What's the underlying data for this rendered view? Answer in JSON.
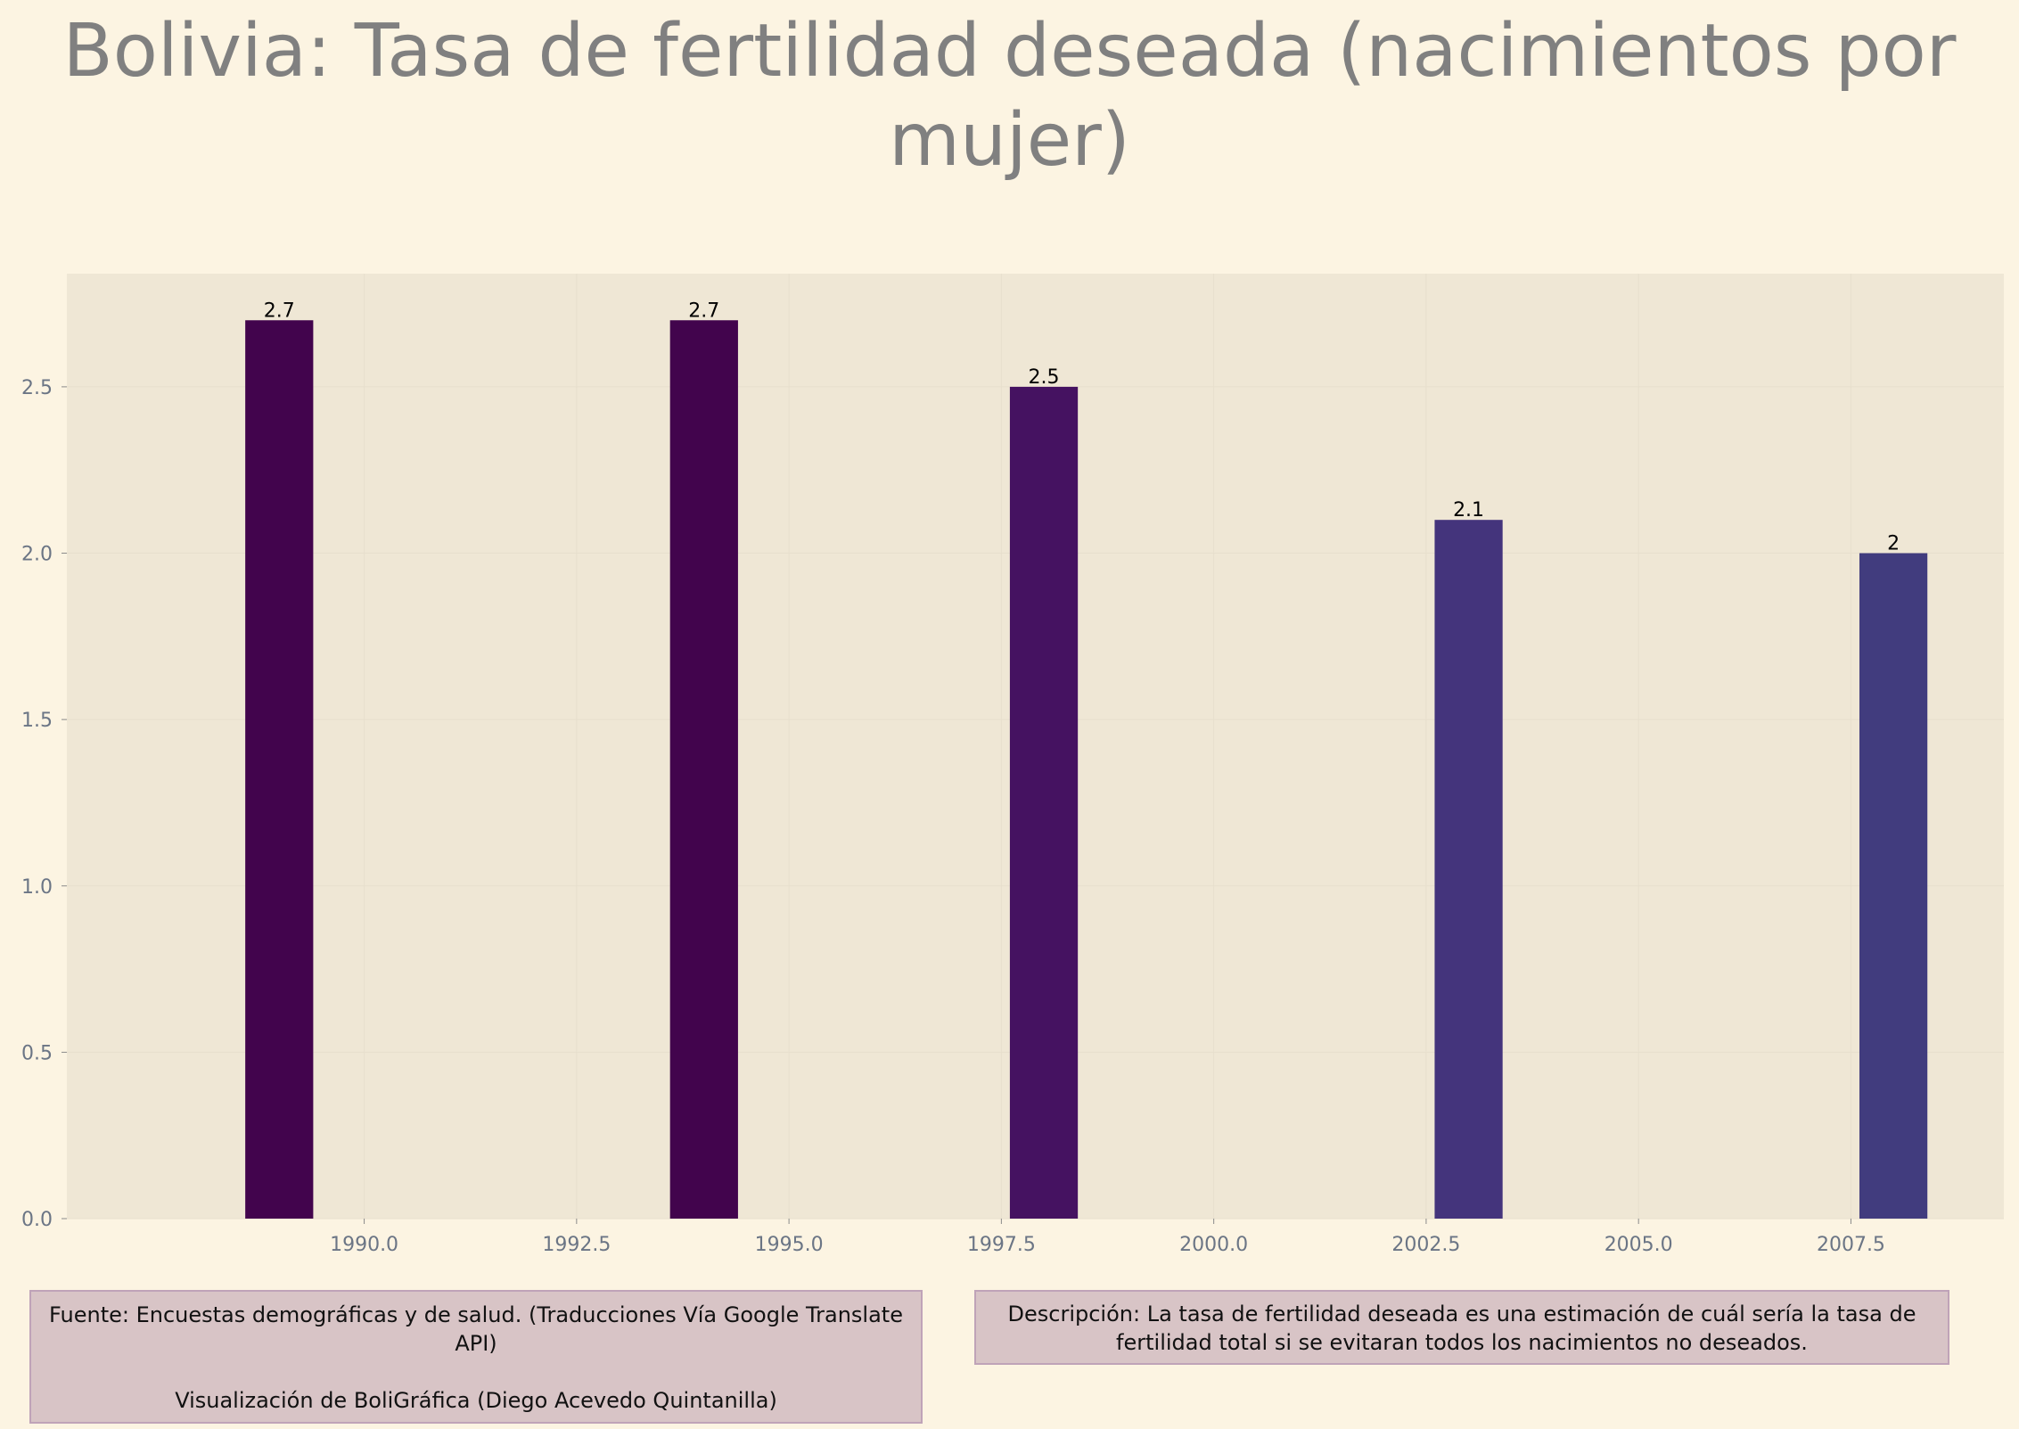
{
  "title": "Bolivia:  Tasa de fertilidad deseada (nacimientos por mujer)",
  "colors": {
    "background": "#fcf4e2",
    "plot_background": "#efe7d5",
    "bars": [
      "#42044d",
      "#42044d",
      "#451261",
      "#44347c",
      "#413c7e"
    ]
  },
  "chart_data": {
    "type": "bar",
    "title": "Bolivia:  Tasa de fertilidad deseada (nacimientos por mujer)",
    "x": [
      1989,
      1994,
      1998,
      2003,
      2008
    ],
    "values": [
      2.7,
      2.7,
      2.5,
      2.1,
      2.0
    ],
    "data_labels": [
      "2.7",
      "2.7",
      "2.5",
      "2.1",
      "2"
    ],
    "bar_width_years": 0.8,
    "xlim": [
      1986.5,
      2009.3
    ],
    "ylim": [
      0,
      2.84
    ],
    "xticks": [
      1990.0,
      1992.5,
      1995.0,
      1997.5,
      2000.0,
      2002.5,
      2005.0,
      2007.5
    ],
    "xtick_labels": [
      "1990.0",
      "1992.5",
      "1995.0",
      "1997.5",
      "2000.0",
      "2002.5",
      "2005.0",
      "2007.5"
    ],
    "yticks": [
      0.0,
      0.5,
      1.0,
      1.5,
      2.0,
      2.5
    ],
    "ytick_labels": [
      "0.0",
      "0.5",
      "1.0",
      "1.5",
      "2.0",
      "2.5"
    ],
    "xlabel": "",
    "ylabel": "",
    "grid": true
  },
  "notes": {
    "source_line1": "Fuente: Encuestas demográficas y de salud. (Traducciones Vía Google Translate API)",
    "source_line2": "Visualización de BoliGráfica (Diego Acevedo Quintanilla)",
    "description": "Descripción: La tasa de fertilidad deseada es una estimación de cuál sería la tasa de fertilidad total si se evitaran todos los nacimientos no deseados."
  }
}
